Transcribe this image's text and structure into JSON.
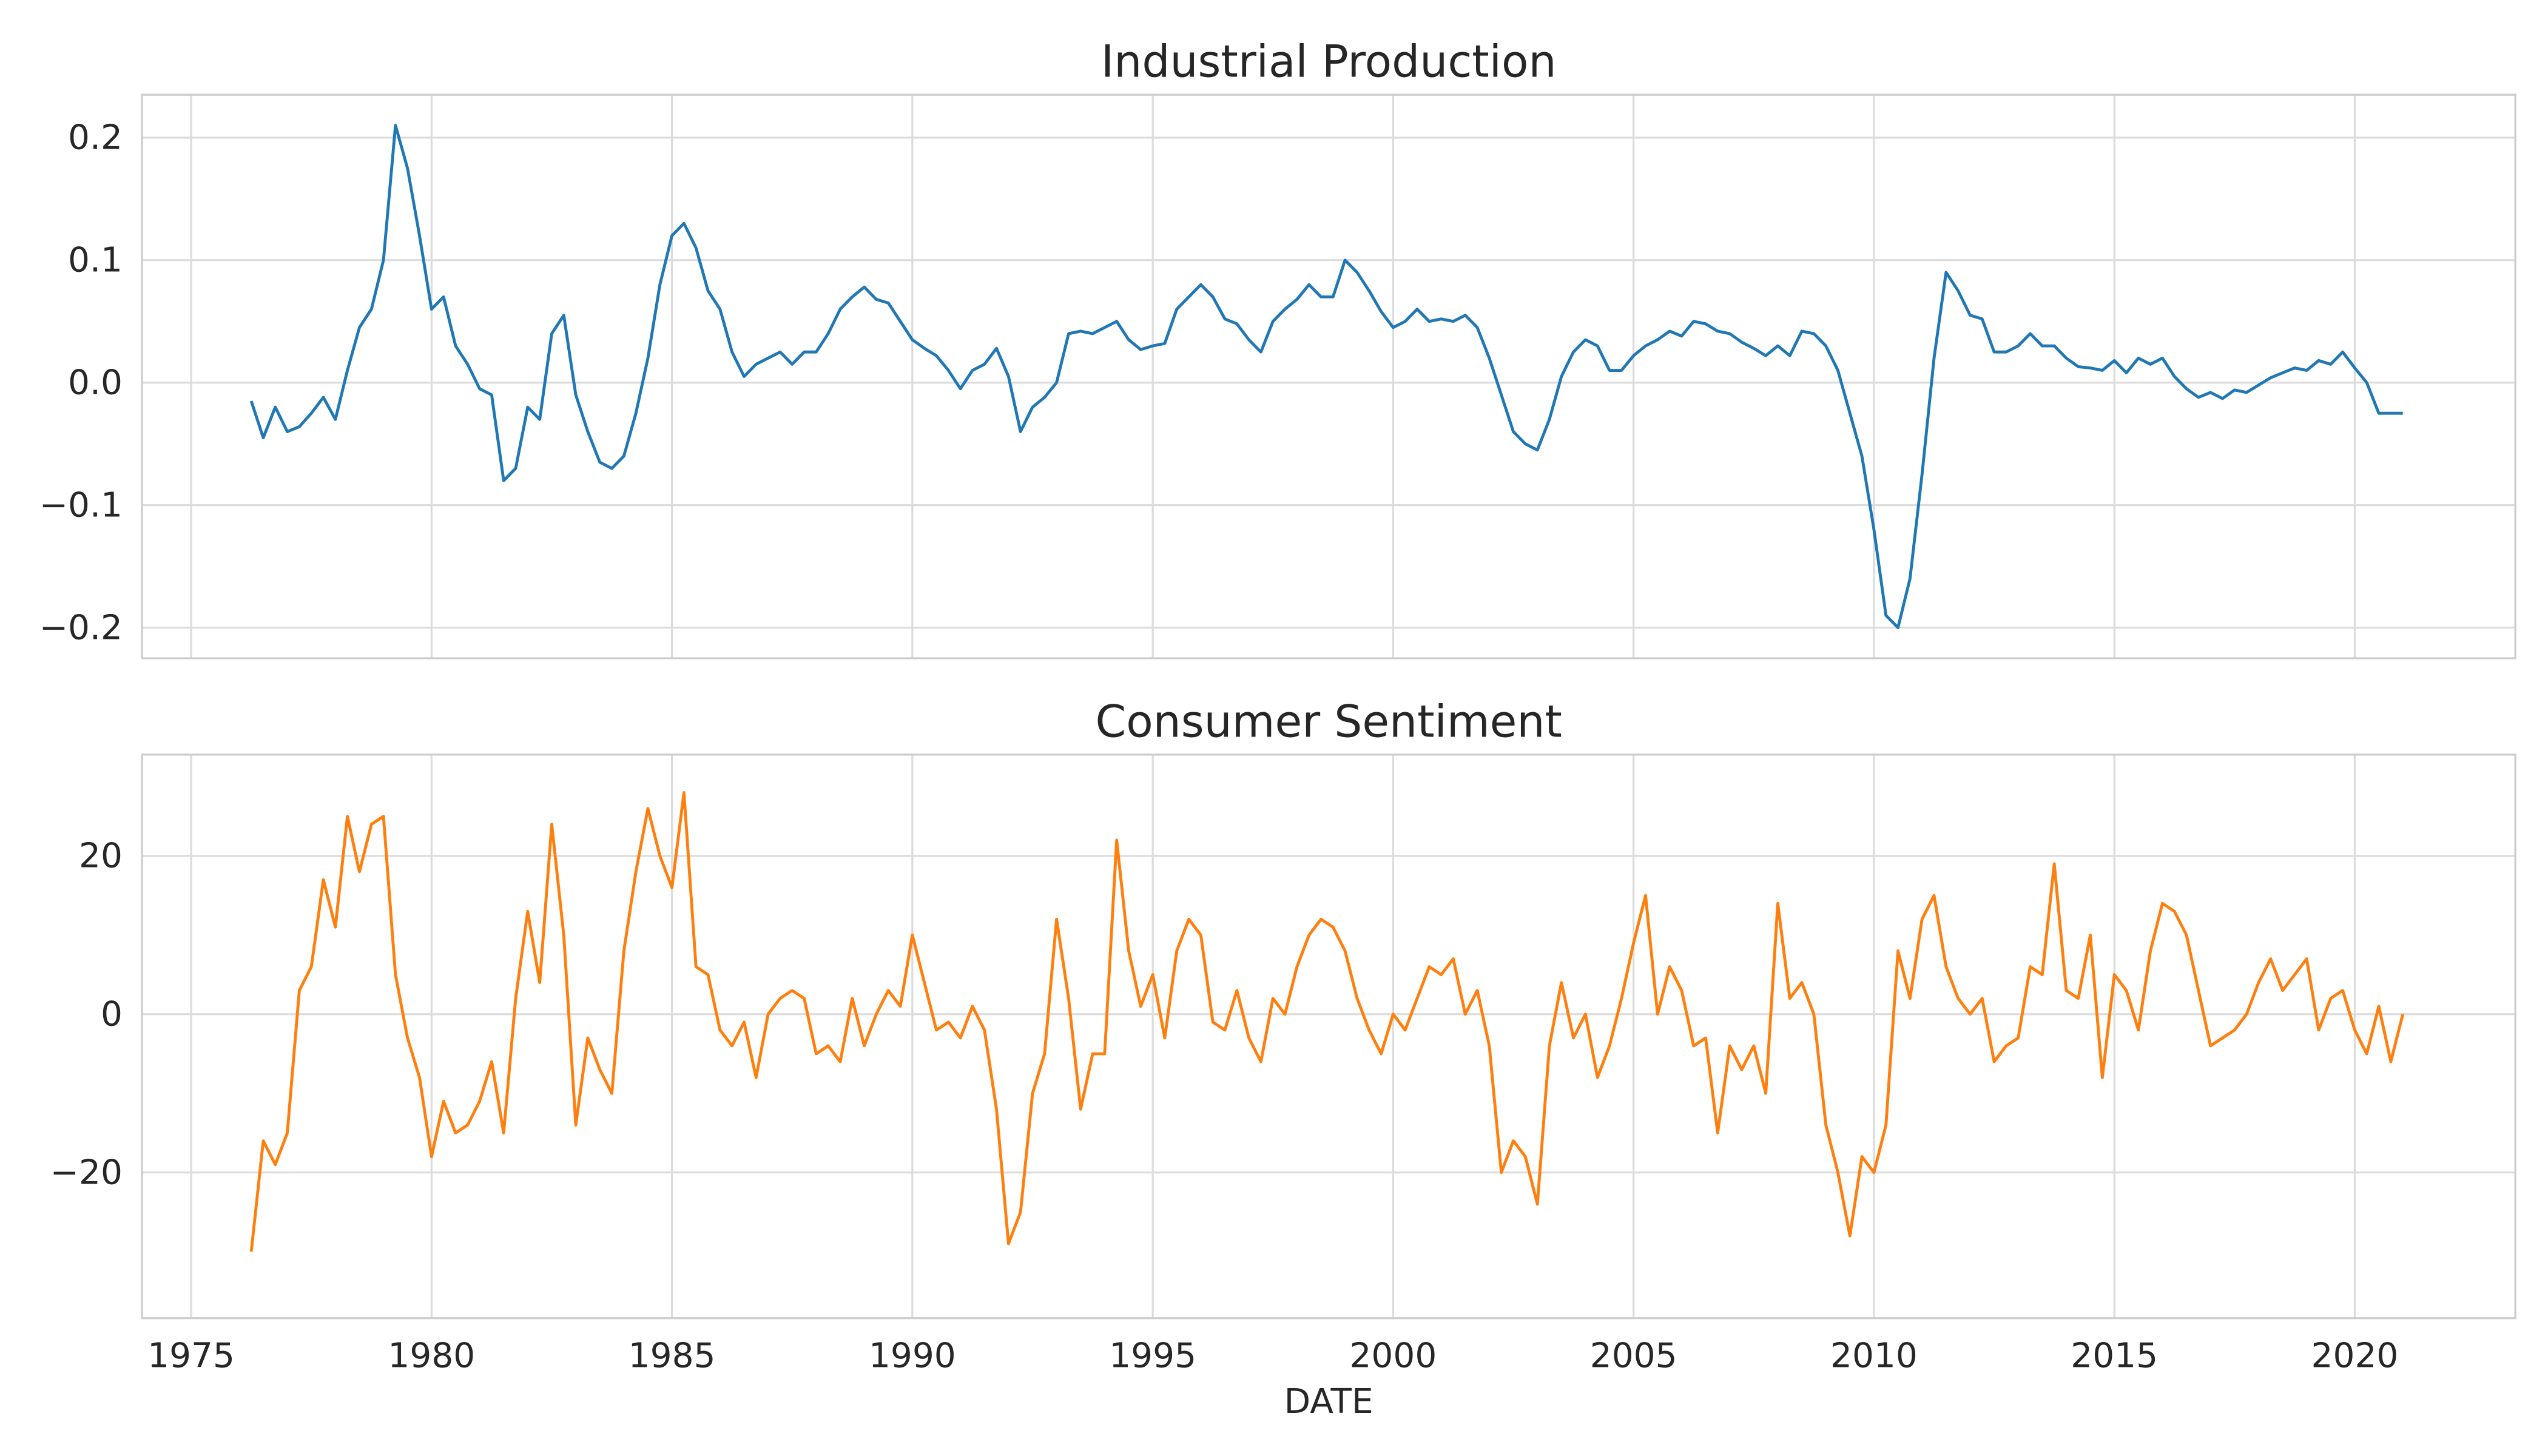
{
  "chart_data": [
    {
      "type": "line",
      "title": "Industrial Production",
      "color": "#1f77b4",
      "grid": true,
      "x": [
        1976.25,
        1976.5,
        1976.75,
        1977,
        1977.25,
        1977.5,
        1977.75,
        1978,
        1978.25,
        1978.5,
        1978.75,
        1979,
        1979.25,
        1979.5,
        1979.75,
        1980,
        1980.25,
        1980.5,
        1980.75,
        1981,
        1981.25,
        1981.5,
        1981.75,
        1982,
        1982.25,
        1982.5,
        1982.75,
        1983,
        1983.25,
        1983.5,
        1983.75,
        1984,
        1984.25,
        1984.5,
        1984.75,
        1985,
        1985.25,
        1985.5,
        1985.75,
        1986,
        1986.25,
        1986.5,
        1986.75,
        1987,
        1987.25,
        1987.5,
        1987.75,
        1988,
        1988.25,
        1988.5,
        1988.75,
        1989,
        1989.25,
        1989.5,
        1989.75,
        1990,
        1990.25,
        1990.5,
        1990.75,
        1991,
        1991.25,
        1991.5,
        1991.75,
        1992,
        1992.25,
        1992.5,
        1992.75,
        1993,
        1993.25,
        1993.5,
        1993.75,
        1994,
        1994.25,
        1994.5,
        1994.75,
        1995,
        1995.25,
        1995.5,
        1995.75,
        1996,
        1996.25,
        1996.5,
        1996.75,
        1997,
        1997.25,
        1997.5,
        1997.75,
        1998,
        1998.25,
        1998.5,
        1998.75,
        1999,
        1999.25,
        1999.5,
        1999.75,
        2000,
        2000.25,
        2000.5,
        2000.75,
        2001,
        2001.25,
        2001.5,
        2001.75,
        2002,
        2002.25,
        2002.5,
        2002.75,
        2003,
        2003.25,
        2003.5,
        2003.75,
        2004,
        2004.25,
        2004.5,
        2004.75,
        2005,
        2005.25,
        2005.5,
        2005.75,
        2006,
        2006.25,
        2006.5,
        2006.75,
        2007,
        2007.25,
        2007.5,
        2007.75,
        2008,
        2008.25,
        2008.5,
        2008.75,
        2009,
        2009.25,
        2009.5,
        2009.75,
        2010,
        2010.25,
        2010.5,
        2010.75,
        2011,
        2011.25,
        2011.5,
        2011.75,
        2012,
        2012.25,
        2012.5,
        2012.75,
        2013,
        2013.25,
        2013.5,
        2013.75,
        2014,
        2014.25,
        2014.5,
        2014.75,
        2015,
        2015.25,
        2015.5,
        2015.75,
        2016,
        2016.25,
        2016.5,
        2016.75,
        2017,
        2017.25,
        2017.5,
        2017.75,
        2018,
        2018.25,
        2018.5,
        2018.75,
        2019,
        2019.25,
        2019.5,
        2019.75,
        2020,
        2020.25,
        2020.5,
        2020.75,
        2021
      ],
      "values": [
        -0.015,
        -0.045,
        -0.02,
        -0.04,
        -0.036,
        -0.025,
        -0.012,
        -0.03,
        0.01,
        0.045,
        0.06,
        0.1,
        0.21,
        0.175,
        0.12,
        0.06,
        0.07,
        0.03,
        0.015,
        -0.005,
        -0.01,
        -0.08,
        -0.07,
        -0.02,
        -0.03,
        0.04,
        0.055,
        -0.01,
        -0.04,
        -0.065,
        -0.07,
        -0.06,
        -0.025,
        0.02,
        0.08,
        0.12,
        0.13,
        0.11,
        0.075,
        0.06,
        0.025,
        0.005,
        0.015,
        0.02,
        0.025,
        0.015,
        0.025,
        0.025,
        0.04,
        0.06,
        0.07,
        0.078,
        0.068,
        0.065,
        0.05,
        0.035,
        0.028,
        0.022,
        0.01,
        -0.005,
        0.01,
        0.015,
        0.028,
        0.005,
        -0.04,
        -0.02,
        -0.012,
        0.0,
        0.04,
        0.042,
        0.04,
        0.045,
        0.05,
        0.035,
        0.027,
        0.03,
        0.032,
        0.06,
        0.07,
        0.08,
        0.07,
        0.052,
        0.048,
        0.035,
        0.025,
        0.05,
        0.06,
        0.068,
        0.08,
        0.07,
        0.07,
        0.1,
        0.09,
        0.075,
        0.058,
        0.045,
        0.05,
        0.06,
        0.05,
        0.052,
        0.05,
        0.055,
        0.045,
        0.02,
        -0.01,
        -0.04,
        -0.05,
        -0.055,
        -0.03,
        0.005,
        0.025,
        0.035,
        0.03,
        0.01,
        0.01,
        0.022,
        0.03,
        0.035,
        0.042,
        0.038,
        0.05,
        0.048,
        0.042,
        0.04,
        0.033,
        0.028,
        0.022,
        0.03,
        0.022,
        0.042,
        0.04,
        0.03,
        0.01,
        -0.025,
        -0.06,
        -0.12,
        -0.19,
        -0.2,
        -0.16,
        -0.075,
        0.02,
        0.09,
        0.075,
        0.055,
        0.052,
        0.025,
        0.025,
        0.03,
        0.04,
        0.03,
        0.03,
        0.02,
        0.013,
        0.012,
        0.01,
        0.018,
        0.008,
        0.02,
        0.015,
        0.02,
        0.005,
        -0.005,
        -0.012,
        -0.008,
        -0.013,
        -0.006,
        -0.008,
        -0.002,
        0.004,
        0.008,
        0.012,
        0.01,
        0.018,
        0.015,
        0.025,
        0.012,
        0.0,
        -0.025,
        -0.025,
        -0.025
      ],
      "xlim": [
        1973.98,
        2023.34
      ],
      "xticks": [
        1975,
        1980,
        1985,
        1990,
        1995,
        2000,
        2005,
        2010,
        2015,
        2020
      ],
      "ylim": [
        -0.225,
        0.235
      ],
      "yticks": [
        {
          "value": -0.2,
          "label": "−0.2"
        },
        {
          "value": -0.1,
          "label": "−0.1"
        },
        {
          "value": 0,
          "label": "0.0"
        },
        0.1,
        0.2
      ]
    },
    {
      "type": "line",
      "title": "Consumer Sentiment",
      "color": "#ff7f0e",
      "grid": true,
      "x_label": "DATE",
      "x": [
        1976.25,
        1976.5,
        1976.75,
        1977,
        1977.25,
        1977.5,
        1977.75,
        1978,
        1978.25,
        1978.5,
        1978.75,
        1979,
        1979.25,
        1979.5,
        1979.75,
        1980,
        1980.25,
        1980.5,
        1980.75,
        1981,
        1981.25,
        1981.5,
        1981.75,
        1982,
        1982.25,
        1982.5,
        1982.75,
        1983,
        1983.25,
        1983.5,
        1983.75,
        1984,
        1984.25,
        1984.5,
        1984.75,
        1985,
        1985.25,
        1985.5,
        1985.75,
        1986,
        1986.25,
        1986.5,
        1986.75,
        1987,
        1987.25,
        1987.5,
        1987.75,
        1988,
        1988.25,
        1988.5,
        1988.75,
        1989,
        1989.25,
        1989.5,
        1989.75,
        1990,
        1990.25,
        1990.5,
        1990.75,
        1991,
        1991.25,
        1991.5,
        1991.75,
        1992,
        1992.25,
        1992.5,
        1992.75,
        1993,
        1993.25,
        1993.5,
        1993.75,
        1994,
        1994.25,
        1994.5,
        1994.75,
        1995,
        1995.25,
        1995.5,
        1995.75,
        1996,
        1996.25,
        1996.5,
        1996.75,
        1997,
        1997.25,
        1997.5,
        1997.75,
        1998,
        1998.25,
        1998.5,
        1998.75,
        1999,
        1999.25,
        1999.5,
        1999.75,
        2000,
        2000.25,
        2000.5,
        2000.75,
        2001,
        2001.25,
        2001.5,
        2001.75,
        2002,
        2002.25,
        2002.5,
        2002.75,
        2003,
        2003.25,
        2003.5,
        2003.75,
        2004,
        2004.25,
        2004.5,
        2004.75,
        2005,
        2005.25,
        2005.5,
        2005.75,
        2006,
        2006.25,
        2006.5,
        2006.75,
        2007,
        2007.25,
        2007.5,
        2007.75,
        2008,
        2008.25,
        2008.5,
        2008.75,
        2009,
        2009.25,
        2009.5,
        2009.75,
        2010,
        2010.25,
        2010.5,
        2010.75,
        2011,
        2011.25,
        2011.5,
        2011.75,
        2012,
        2012.25,
        2012.5,
        2012.75,
        2013,
        2013.25,
        2013.5,
        2013.75,
        2014,
        2014.25,
        2014.5,
        2014.75,
        2015,
        2015.25,
        2015.5,
        2015.75,
        2016,
        2016.25,
        2016.5,
        2016.75,
        2017,
        2017.25,
        2017.5,
        2017.75,
        2018,
        2018.25,
        2018.5,
        2018.75,
        2019,
        2019.25,
        2019.5,
        2019.75,
        2020,
        2020.25,
        2020.5,
        2020.75,
        2021
      ],
      "values": [
        -30,
        -16,
        -19,
        -15,
        3,
        6,
        17,
        11,
        25,
        18,
        24,
        25,
        5,
        -3,
        -8,
        -18,
        -11,
        -15,
        -14,
        -11,
        -6,
        -15,
        2,
        13,
        4,
        24,
        10,
        -14,
        -3,
        -7,
        -10,
        8,
        18,
        26,
        20,
        16,
        28,
        6,
        5,
        -2,
        -4,
        -1,
        -8,
        0,
        2,
        3,
        2,
        -5,
        -4,
        -6,
        2,
        -4,
        0,
        3,
        1,
        10,
        4,
        -2,
        -1,
        -3,
        1,
        -2,
        -12,
        -29,
        -25,
        -10,
        -5,
        12,
        2,
        -12,
        -5,
        -5,
        22,
        8,
        1,
        5,
        -3,
        8,
        12,
        10,
        -1,
        -2,
        3,
        -3,
        -6,
        2,
        0,
        6,
        10,
        12,
        11,
        8,
        2,
        -2,
        -5,
        0,
        -2,
        2,
        6,
        5,
        7,
        0,
        3,
        -4,
        -20,
        -16,
        -18,
        -24,
        -4,
        4,
        -3,
        0,
        -8,
        -4,
        2,
        9,
        15,
        0,
        6,
        3,
        -4,
        -3,
        -15,
        -4,
        -7,
        -4,
        -10,
        14,
        2,
        4,
        0,
        -14,
        -20,
        -28,
        -18,
        -20,
        -14,
        8,
        2,
        12,
        15,
        6,
        2,
        0,
        2,
        -6,
        -4,
        -3,
        6,
        5,
        19,
        3,
        2,
        10,
        -8,
        5,
        3,
        -2,
        8,
        14,
        13,
        10,
        3,
        -4,
        -3,
        -2,
        0,
        4,
        7,
        3,
        5,
        7,
        -2,
        2,
        3,
        -2,
        -5,
        1,
        -6,
        0
      ],
      "xlim": [
        1973.98,
        2023.34
      ],
      "xticks": [
        1975,
        1980,
        1985,
        1990,
        1995,
        2000,
        2005,
        2010,
        2015,
        2020
      ],
      "ylim": [
        -38.4,
        32.8
      ],
      "yticks": [
        {
          "value": -20,
          "label": "−20"
        },
        0,
        20
      ]
    }
  ]
}
